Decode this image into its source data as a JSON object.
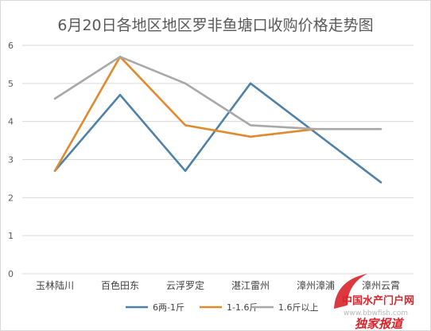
{
  "chart_data": {
    "type": "line",
    "title": "6月20日各地区地区罗非鱼塘口收购价格走势图",
    "categories": [
      "玉林陆川",
      "百色田东",
      "云浮罗定",
      "湛江雷州",
      "漳州漳浦",
      "漳州云霄"
    ],
    "ylim": [
      0,
      6
    ],
    "yticks": [
      "0",
      "1",
      "2",
      "3",
      "4",
      "5",
      "6"
    ],
    "grid": true,
    "legend_position": "bottom",
    "series": [
      {
        "name": "6两-1斤",
        "color": "#4f81a8",
        "values": [
          2.7,
          4.7,
          2.7,
          5.0,
          3.7,
          2.4
        ]
      },
      {
        "name": "1-1.6斤",
        "color": "#e08a2f",
        "values": [
          2.7,
          5.7,
          3.9,
          3.6,
          3.8,
          null
        ]
      },
      {
        "name": "1.6斤以上",
        "color": "#a8a8a8",
        "values": [
          4.6,
          5.7,
          5.0,
          3.9,
          3.8,
          3.8
        ]
      }
    ]
  },
  "watermark": {
    "brand": "中国水产门户网",
    "url": "www.bbwfish.com",
    "tag": "独家报道"
  }
}
